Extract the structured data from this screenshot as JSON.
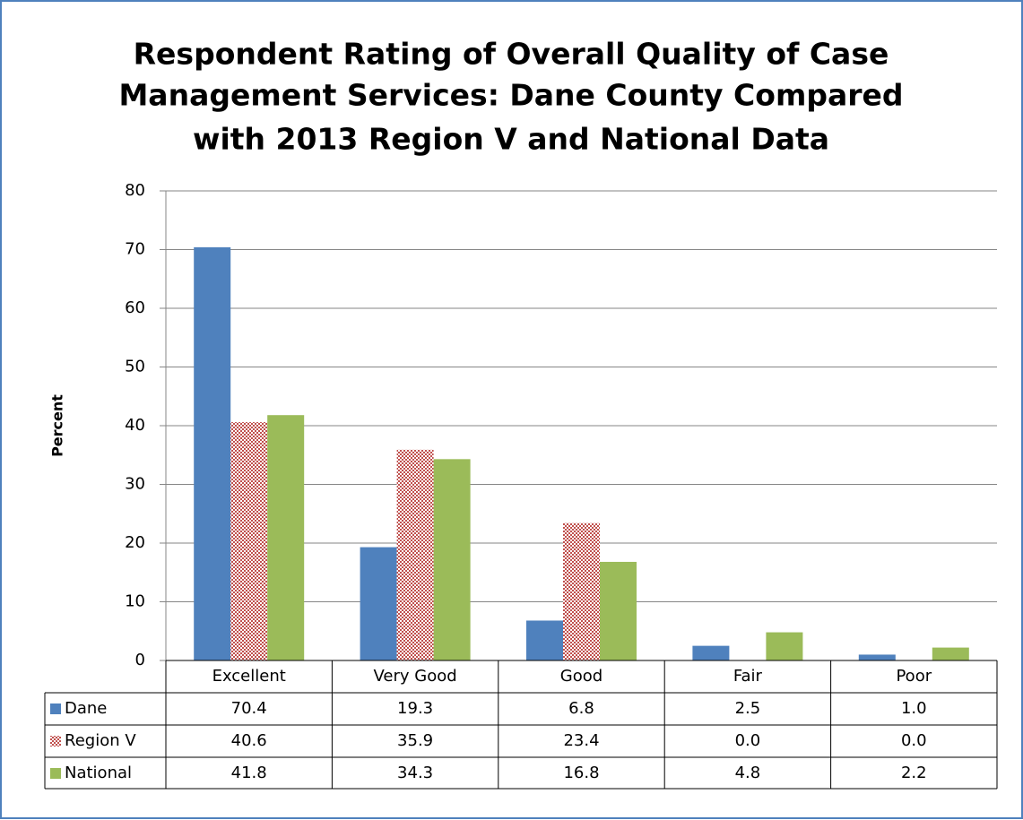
{
  "chart_data": {
    "type": "bar",
    "title": [
      "Respondent Rating of Overall Quality of Case",
      "Management Services:  Dane County Compared",
      "with 2013 Region V and National Data"
    ],
    "y_label": "Percent",
    "categories": [
      "Excellent",
      "Very Good",
      "Good",
      "Fair",
      "Poor"
    ],
    "series": [
      {
        "name": "Dane",
        "color": "#4f81bd",
        "pattern": "solid",
        "values": [
          70.4,
          19.3,
          6.8,
          2.5,
          1.0
        ],
        "value_labels": [
          "70.4",
          "19.3",
          "6.8",
          "2.5",
          "1.0"
        ]
      },
      {
        "name": "Region V",
        "color": "#c0504d",
        "pattern": "checker",
        "values": [
          40.6,
          35.9,
          23.4,
          0.0,
          0.0
        ],
        "value_labels": [
          "40.6",
          "35.9",
          "23.4",
          "0.0",
          "0.0"
        ]
      },
      {
        "name": "National",
        "color": "#9bbb59",
        "pattern": "solid",
        "values": [
          41.8,
          34.3,
          16.8,
          4.8,
          2.2
        ],
        "value_labels": [
          "41.8",
          "34.3",
          "16.8",
          "4.8",
          "2.2"
        ]
      }
    ],
    "ylim": [
      0,
      80
    ],
    "yticks": [
      0,
      10,
      20,
      30,
      40,
      50,
      60,
      70,
      80
    ],
    "grid": true
  }
}
